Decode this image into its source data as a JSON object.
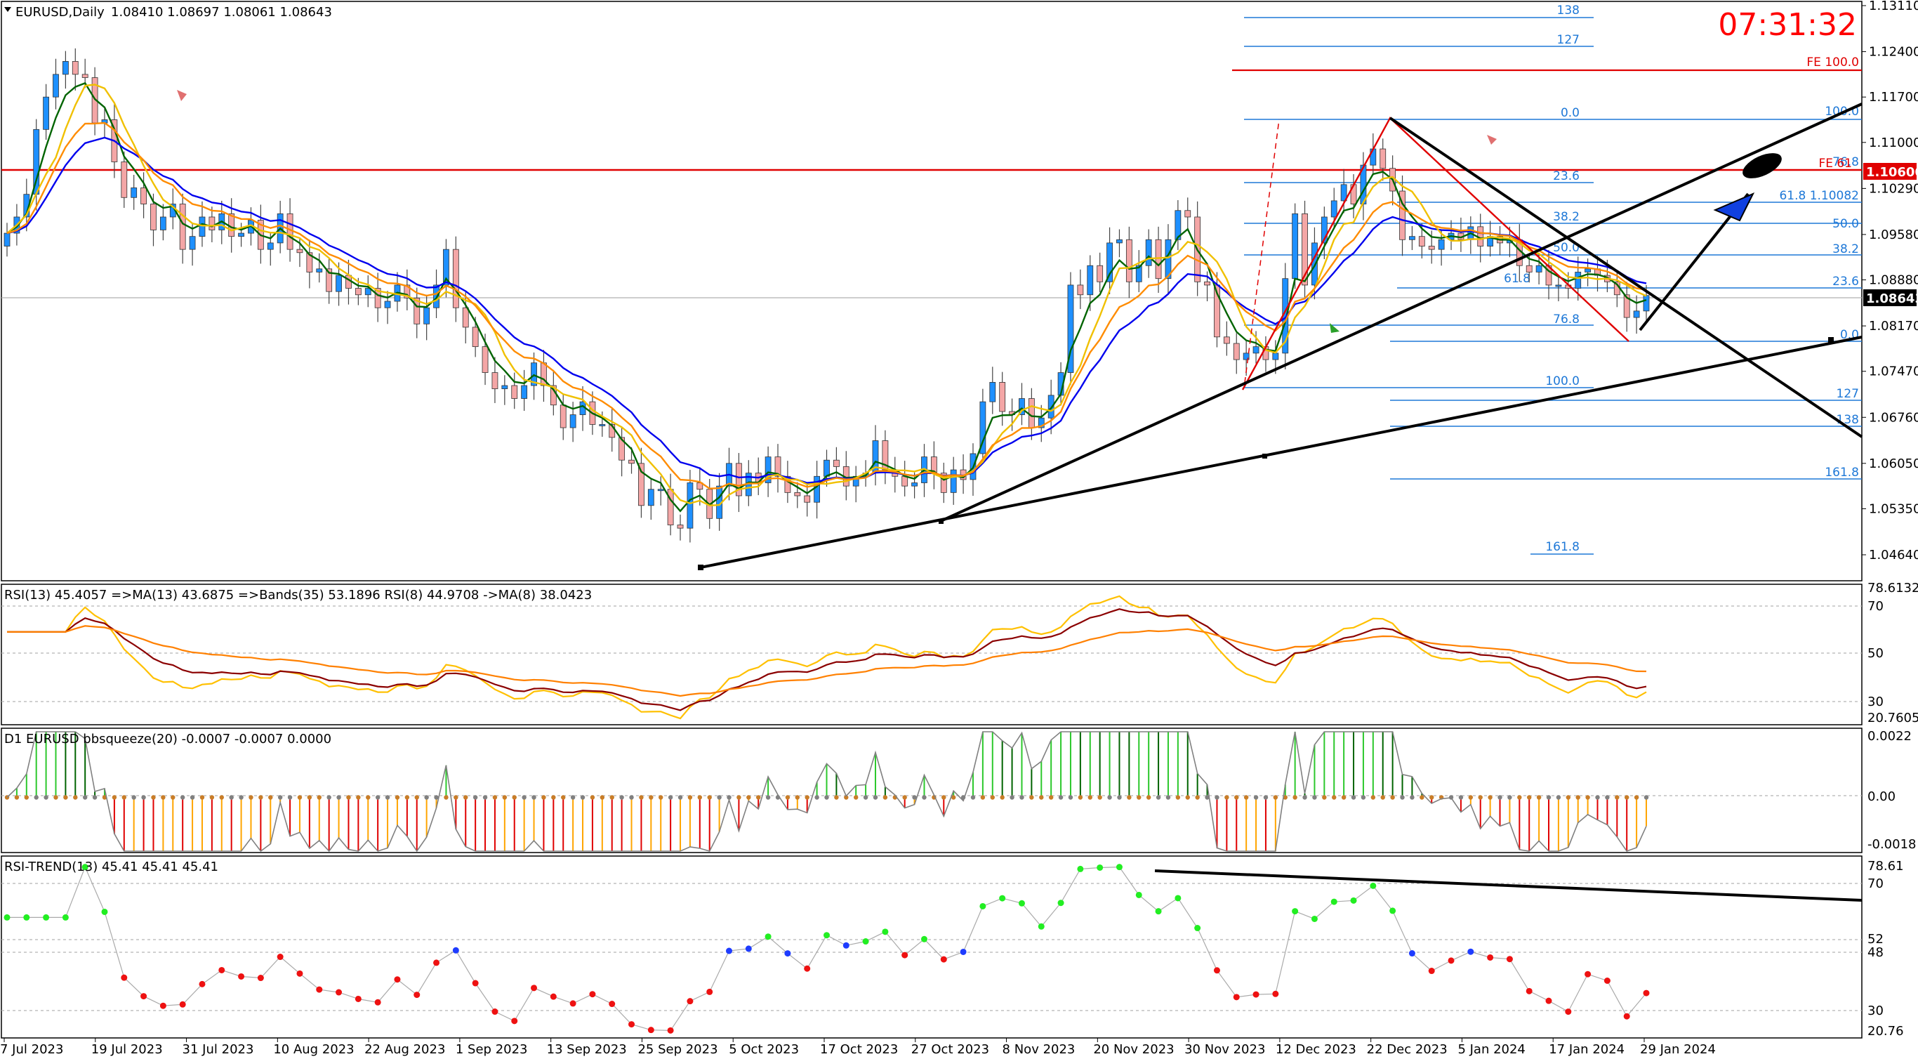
{
  "header": {
    "symbol_label": "EURUSD,Daily",
    "ohlc": "1.08410 1.08697 1.08061 1.08643",
    "clock": "07:31:32"
  },
  "price_panel": {
    "price_ticks": [
      "1.13110",
      "1.12400",
      "1.11700",
      "1.11000",
      "1.10290",
      "1.09580",
      "1.08880",
      "1.08170",
      "1.07470",
      "1.06760",
      "1.06050",
      "1.05350",
      "1.04640"
    ],
    "current_price": "1.08643",
    "hline_price": "1.10600",
    "hline_tag": "FE 61"
  },
  "rsi_panel": {
    "title": "RSI(13) 45.4057  =>MA(13) 43.6875  =>Bands(35) 53.1896  RSI(8) 44.9708  ->MA(8) 38.0423",
    "ticks": [
      "78.6132",
      "70",
      "50",
      "30",
      "20.7605"
    ]
  },
  "squeeze_panel": {
    "title": "D1 EURUSD bbsqueeze(20) -0.0007 -0.0007 0.0000",
    "ticks": [
      "0.0022",
      "0.00",
      "-0.0018"
    ]
  },
  "trend_panel": {
    "title": "RSI-TREND(13) 45.41 45.41 45.41",
    "ticks": [
      "78.61",
      "70",
      "52",
      "48",
      "30",
      "20.76"
    ]
  },
  "x_axis": {
    "labels": [
      "7 Jul 2023",
      "19 Jul 2023",
      "31 Jul 2023",
      "10 Aug 2023",
      "22 Aug 2023",
      "1 Sep 2023",
      "13 Sep 2023",
      "25 Sep 2023",
      "5 Oct 2023",
      "17 Oct 2023",
      "27 Oct 2023",
      "8 Nov 2023",
      "20 Nov 2023",
      "30 Nov 2023",
      "12 Dec 2023",
      "22 Dec 2023",
      "5 Jan 2024",
      "17 Jan 2024",
      "29 Jan 2024"
    ]
  },
  "fib_upper": [
    "138",
    "127",
    "0.0",
    "23.6",
    "38.2",
    "50.0",
    "61.8",
    "76.8",
    "100.0",
    "127",
    "138",
    "161.8"
  ],
  "fib_right": [
    "100.0",
    "76.8",
    "61.8  1.10082",
    "50.0",
    "38.2",
    "23.6",
    "0.0",
    "127",
    "138",
    "161.8"
  ],
  "fe_labels": [
    "FE 100.0"
  ],
  "colors": {
    "bull": "#1e90ff",
    "bear": "#f4a6a6",
    "ema_short": "#006400",
    "ema_mid": "#0000ee",
    "ema_yellow": "#f0c000",
    "ema_orange": "#ff8c00",
    "fib": "#1e78d7",
    "clock": "#ff0000"
  },
  "chart_data": {
    "type": "candlestick",
    "symbol": "EURUSD",
    "timeframe": "Daily",
    "ohlc_last": {
      "open": 1.0841,
      "high": 1.08697,
      "low": 1.08061,
      "close": 1.08643
    },
    "close_series": [
      1.096,
      1.0985,
      1.102,
      1.112,
      1.117,
      1.1205,
      1.1225,
      1.1205,
      1.12,
      1.113,
      1.1135,
      1.107,
      1.1015,
      1.103,
      1.1005,
      1.0965,
      1.0985,
      1.1005,
      1.0935,
      1.0955,
      1.0985,
      1.0965,
      1.099,
      1.0955,
      1.096,
      1.098,
      1.0935,
      1.0945,
      1.099,
      1.0935,
      1.093,
      1.09,
      1.0905,
      1.087,
      1.0895,
      1.0875,
      1.0865,
      1.0875,
      1.0845,
      1.0855,
      1.088,
      1.086,
      1.082,
      1.0845,
      1.088,
      1.0935,
      1.0845,
      1.0815,
      1.0785,
      1.0745,
      1.072,
      1.0725,
      1.0705,
      1.0725,
      1.076,
      1.0725,
      1.0695,
      1.066,
      1.068,
      1.07,
      1.0665,
      1.0665,
      1.0645,
      1.061,
      1.0605,
      1.054,
      1.0565,
      1.0565,
      1.051,
      1.0505,
      1.0575,
      1.0565,
      1.052,
      1.057,
      1.0605,
      1.0555,
      1.059,
      1.0575,
      1.0615,
      1.0585,
      1.056,
      1.0555,
      1.0545,
      1.0585,
      1.061,
      1.06,
      1.057,
      1.0585,
      1.059,
      1.064,
      1.0595,
      1.0585,
      1.057,
      1.0575,
      1.0615,
      1.059,
      1.056,
      1.0595,
      1.058,
      1.062,
      1.07,
      1.073,
      1.0685,
      1.068,
      1.0705,
      1.066,
      1.0675,
      1.071,
      1.0745,
      1.088,
      1.0865,
      1.091,
      1.0885,
      1.0945,
      1.095,
      1.0885,
      1.091,
      1.095,
      1.089,
      1.095,
      1.0995,
      1.0985,
      1.0885,
      1.088,
      1.08,
      1.079,
      1.0765,
      1.0775,
      1.0785,
      1.0765,
      1.0775,
      1.089,
      1.099,
      1.088,
      1.0945,
      1.0985,
      1.101,
      1.1035,
      1.1005,
      1.1065,
      1.109,
      1.106,
      1.1025,
      1.095,
      1.0955,
      1.094,
      1.0935,
      1.095,
      1.096,
      1.095,
      1.097,
      1.094,
      1.0955,
      1.0945,
      1.095,
      1.091,
      1.09,
      1.091,
      1.088,
      1.088,
      1.0875,
      1.09,
      1.0905,
      1.0895,
      1.0885,
      1.0865,
      1.083,
      1.084,
      1.0864
    ],
    "moving_averages": [
      "green",
      "blue",
      "yellow",
      "orange"
    ],
    "date_labels": [
      "7 Jul 2023",
      "19 Jul 2023",
      "31 Jul 2023",
      "10 Aug 2023",
      "22 Aug 2023",
      "1 Sep 2023",
      "13 Sep 2023",
      "25 Sep 2023",
      "5 Oct 2023",
      "17 Oct 2023",
      "27 Oct 2023",
      "8 Nov 2023",
      "20 Nov 2023",
      "30 Nov 2023",
      "12 Dec 2023",
      "22 Dec 2023",
      "5 Jan 2024",
      "17 Jan 2024",
      "29 Jan 2024"
    ],
    "ylim": [
      1.043,
      1.1325
    ],
    "horizontal_level": 1.106,
    "rsi": {
      "rsi13": 45.4057,
      "ma13": 43.6875,
      "bands35": 53.1896,
      "rsi8": 44.9708,
      "ma8": 38.0423,
      "ylim": [
        20.7605,
        78.6132
      ],
      "levels": [
        70,
        50,
        30
      ]
    },
    "bbsqueeze": {
      "value": -0.0007,
      "signal": -0.0007,
      "zero": 0.0,
      "ylim": [
        -0.0018,
        0.0022
      ]
    },
    "rsi_trend": {
      "value": 45.41,
      "ylim": [
        20.76,
        78.61
      ],
      "levels": [
        70,
        52,
        48,
        30
      ]
    }
  }
}
